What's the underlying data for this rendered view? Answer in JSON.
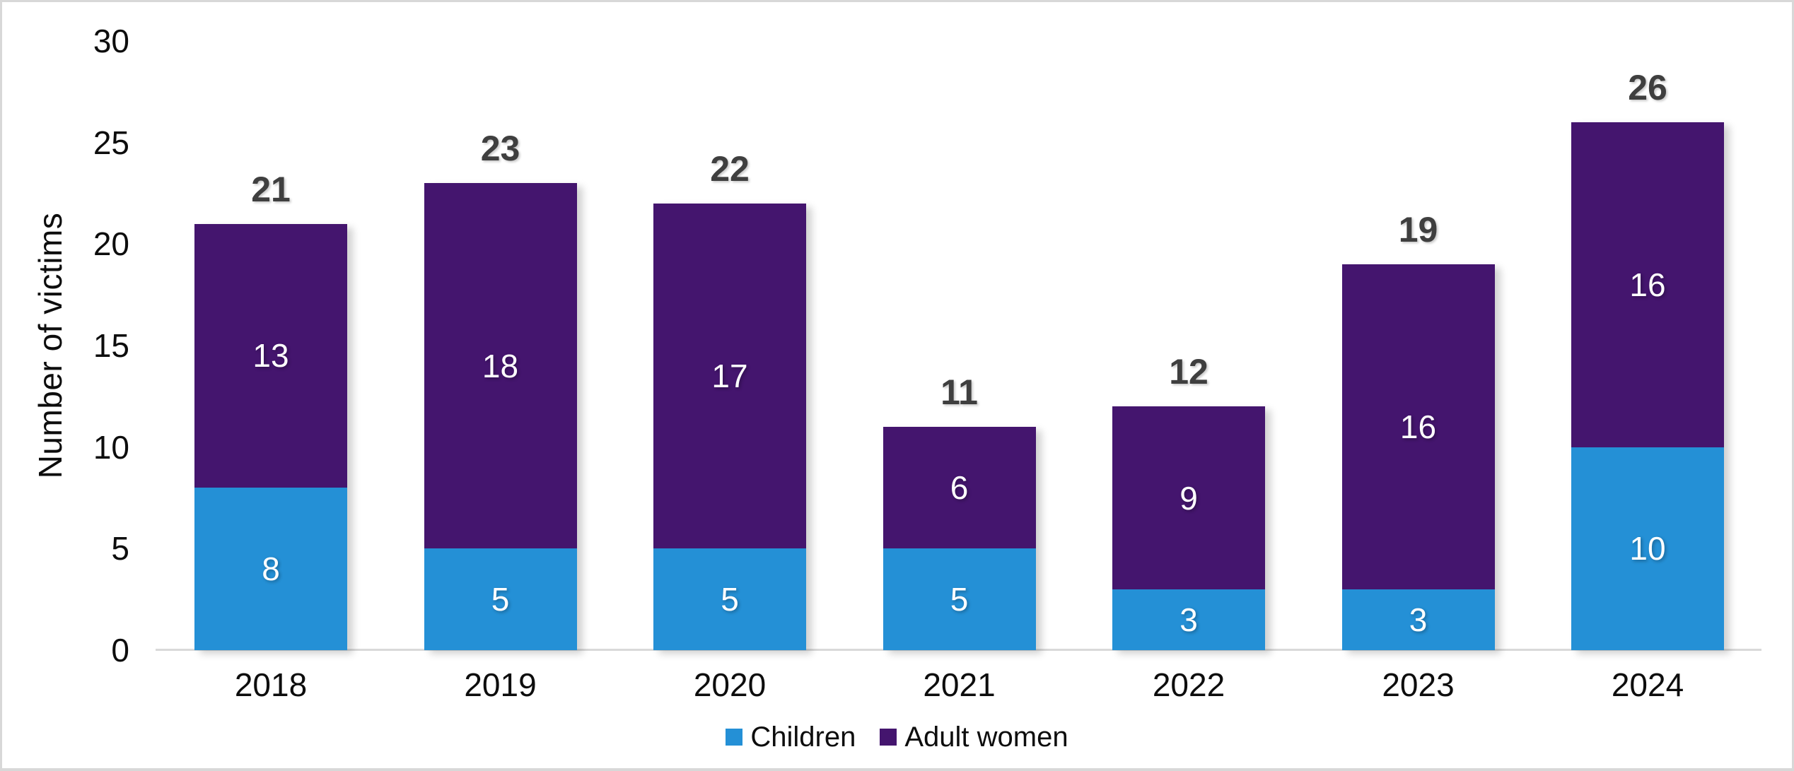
{
  "chart_data": {
    "type": "bar",
    "stacked": true,
    "title": "",
    "xlabel": "",
    "ylabel": "Number of victims",
    "ylim": [
      0,
      30
    ],
    "yticks": [
      0,
      5,
      10,
      15,
      20,
      25,
      30
    ],
    "grid": false,
    "legend_position": "bottom",
    "categories": [
      "2018",
      "2019",
      "2020",
      "2021",
      "2022",
      "2023",
      "2024"
    ],
    "series": [
      {
        "name": "Children",
        "color": "#2490D6",
        "values": [
          8,
          5,
          5,
          5,
          3,
          3,
          10
        ]
      },
      {
        "name": "Adult women",
        "color": "#44156E",
        "values": [
          13,
          18,
          17,
          6,
          9,
          16,
          16
        ]
      }
    ],
    "totals": [
      21,
      23,
      22,
      11,
      12,
      19,
      26
    ]
  },
  "colors": {
    "axis_line": "#D9D9D9",
    "total_label": "#3F3F3F",
    "tick_label": "#0D0D0D",
    "segment_label": "#FFFFFF",
    "background": "#FFFFFF"
  }
}
